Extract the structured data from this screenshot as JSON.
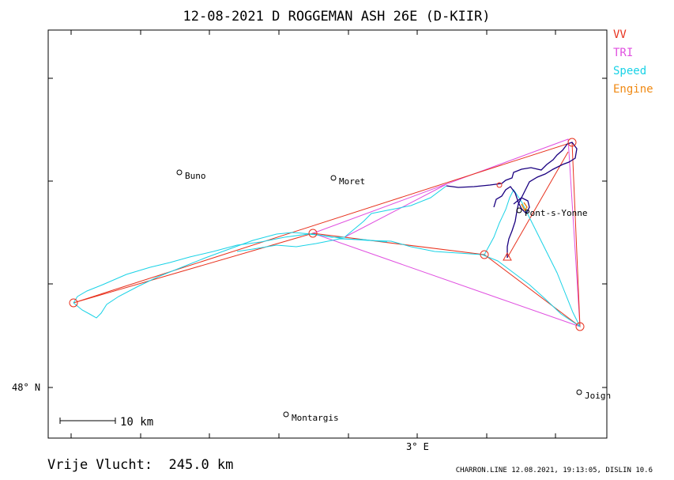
{
  "title": "12-08-2021   D ROGGEMAN   ASH 26E (D-KIIR)",
  "legend": [
    {
      "label": "VV",
      "color": "#e8321e"
    },
    {
      "label": "TRI",
      "color": "#e050e0"
    },
    {
      "label": "Speed",
      "color": "#19d2e6"
    },
    {
      "label": "Engine",
      "color": "#f08a14"
    }
  ],
  "axes": {
    "lat_label": "48° N",
    "lon_label": "3° E"
  },
  "scale_label": "10 km",
  "places": [
    {
      "name": "Buno"
    },
    {
      "name": "Moret"
    },
    {
      "name": "Pont-s-Yonne"
    },
    {
      "name": "Montargis"
    },
    {
      "name": "Joign"
    }
  ],
  "footer": {
    "distance": "Vrije Vlucht:  245.0 km",
    "info": "CHARRON.LINE 12.08.2021, 19:13:05, DISLIN 10.6"
  },
  "colors": {
    "frame": "#000000",
    "track_dark": "#1a0080",
    "turnpoint": "#e8321e"
  }
}
